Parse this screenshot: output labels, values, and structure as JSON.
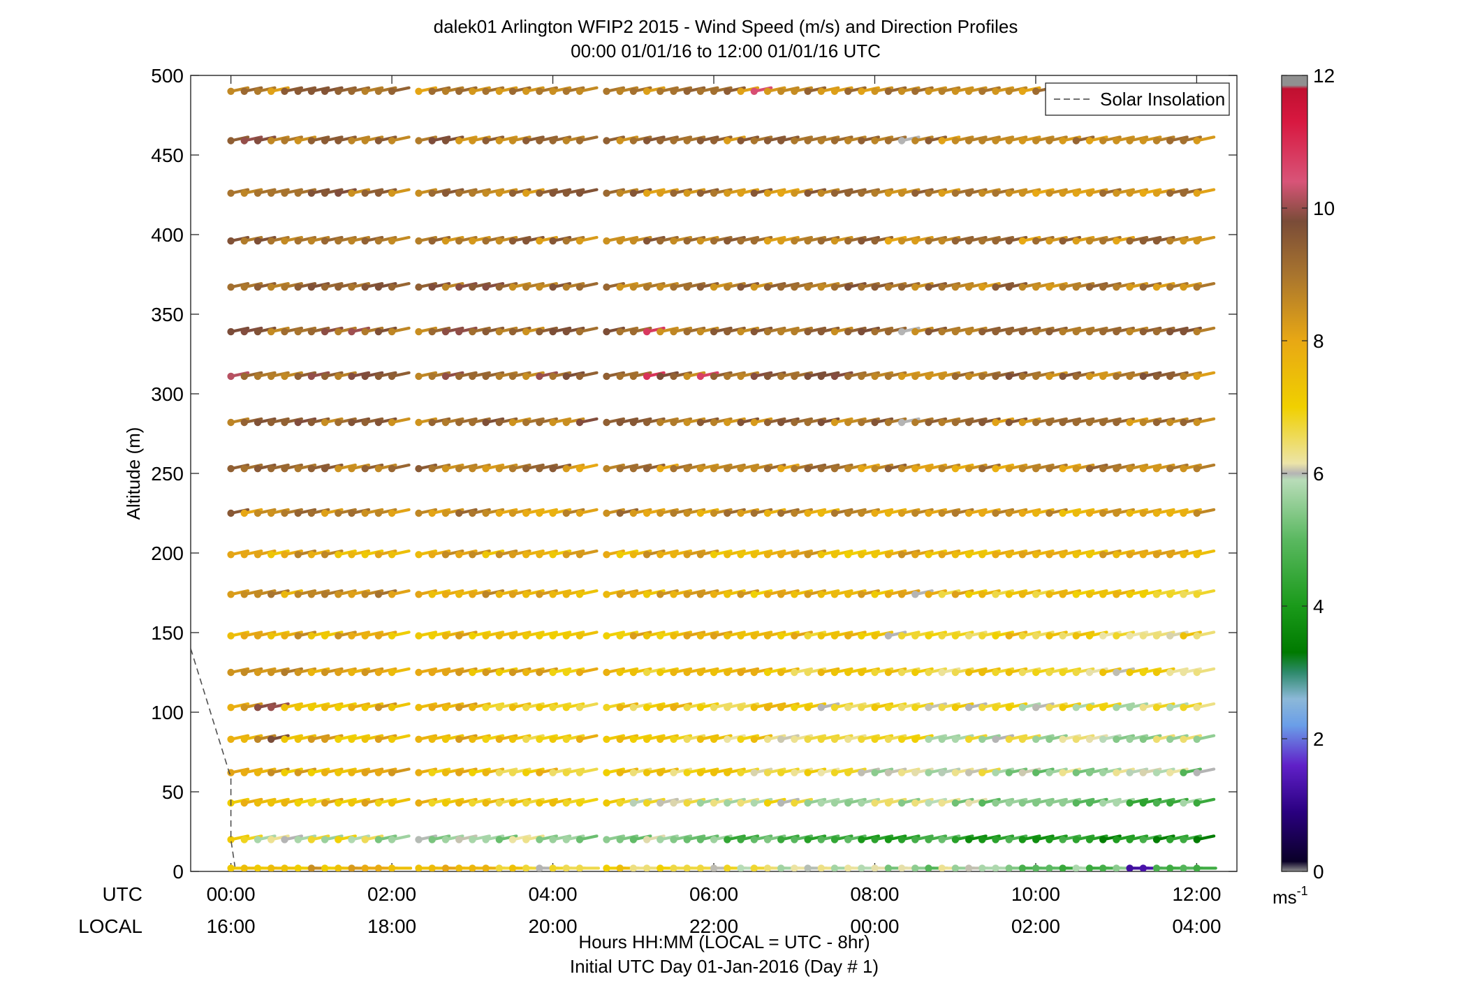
{
  "chart_data": {
    "type": "wind-barb-profile",
    "title": "dalek01 Arlington WFIP2 2015 - Wind Speed (m/s) and Direction Profiles",
    "subtitle": "00:00 01/01/16 to 12:00 01/01/16  UTC",
    "ylabel": "Altitude (m)",
    "xlabel": "Hours HH:MM  (LOCAL = UTC - 8hr)",
    "xlabel2": "Initial UTC Day 01-Jan-2016 (Day # 1)",
    "x_row_labels": {
      "utc": "UTC",
      "local": "LOCAL"
    },
    "x_ticks_utc": [
      "00:00",
      "02:00",
      "04:00",
      "06:00",
      "08:00",
      "10:00",
      "12:00"
    ],
    "x_ticks_local": [
      "16:00",
      "18:00",
      "20:00",
      "22:00",
      "00:00",
      "02:00",
      "04:00"
    ],
    "x_tick_hours": [
      0,
      2,
      4,
      6,
      8,
      10,
      12
    ],
    "xlim_hours": [
      -0.5,
      12.5
    ],
    "ylim": [
      0,
      500
    ],
    "y_ticks": [
      0,
      50,
      100,
      150,
      200,
      250,
      300,
      350,
      400,
      450,
      500
    ],
    "legend": {
      "entry": "Solar Insolation",
      "style": "dashed gray",
      "position": "top-right"
    },
    "colorbar": {
      "range": [
        0,
        12
      ],
      "ticks": [
        0,
        2,
        4,
        6,
        8,
        10,
        12
      ],
      "unit": "ms",
      "unit_exponent": "-1",
      "stops": [
        {
          "v": 0.0,
          "c": "#909090"
        },
        {
          "v": 0.15,
          "c": "#0a0028"
        },
        {
          "v": 0.9,
          "c": "#2a0080"
        },
        {
          "v": 1.6,
          "c": "#6020c8"
        },
        {
          "v": 2.2,
          "c": "#6a9ee8"
        },
        {
          "v": 2.6,
          "c": "#8cb8d8"
        },
        {
          "v": 3.0,
          "c": "#2e8a6c"
        },
        {
          "v": 3.3,
          "c": "#007a00"
        },
        {
          "v": 4.0,
          "c": "#1a9a1a"
        },
        {
          "v": 5.0,
          "c": "#5ab860"
        },
        {
          "v": 5.9,
          "c": "#b8dcb8"
        },
        {
          "v": 6.0,
          "c": "#b4b4b4"
        },
        {
          "v": 6.15,
          "c": "#ece4a8"
        },
        {
          "v": 7.0,
          "c": "#f0d000"
        },
        {
          "v": 8.0,
          "c": "#e8a814"
        },
        {
          "v": 9.0,
          "c": "#a8742e"
        },
        {
          "v": 9.8,
          "c": "#7a4c38"
        },
        {
          "v": 10.4,
          "c": "#d85478"
        },
        {
          "v": 11.3,
          "c": "#d81840"
        },
        {
          "v": 11.8,
          "c": "#c01030"
        },
        {
          "v": 11.85,
          "c": "#909090"
        },
        {
          "v": 12.0,
          "c": "#909090"
        }
      ]
    },
    "solar_insolation": {
      "hours": [
        -0.5,
        -0.02,
        0.0,
        0.0,
        0.05
      ],
      "altitude": [
        140,
        62,
        60,
        20,
        3
      ]
    },
    "heights": [
      2,
      20,
      43,
      62,
      83,
      103,
      125,
      148,
      174,
      199,
      225,
      253,
      282,
      311,
      339,
      367,
      396,
      426,
      459,
      490
    ],
    "time_hours_start": 0.0,
    "time_step_hours": 0.1667,
    "time_steps": 73,
    "gap_hours": [
      [
        2.05,
        2.33
      ],
      [
        4.35,
        4.55
      ]
    ],
    "direction_deg_lowest": 270,
    "direction_deg_other": 245,
    "speed_profile_by_height": [
      {
        "z": 2,
        "early": 8.0,
        "late": 4.8
      },
      {
        "z": 20,
        "early": 6.5,
        "late": 3.8
      },
      {
        "z": 43,
        "early": 7.8,
        "late": 4.9
      },
      {
        "z": 62,
        "early": 8.0,
        "late": 5.4
      },
      {
        "z": 83,
        "early": 8.0,
        "late": 5.8
      },
      {
        "z": 103,
        "early": 7.9,
        "late": 6.2
      },
      {
        "z": 125,
        "early": 8.2,
        "late": 6.5
      },
      {
        "z": 148,
        "early": 8.0,
        "late": 6.8
      },
      {
        "z": 174,
        "early": 8.5,
        "late": 7.0
      },
      {
        "z": 199,
        "early": 8.0,
        "late": 7.6
      },
      {
        "z": 225,
        "early": 8.8,
        "late": 8.0
      },
      {
        "z": 253,
        "early": 8.9,
        "late": 8.5
      },
      {
        "z": 282,
        "early": 9.2,
        "late": 8.8
      },
      {
        "z": 311,
        "early": 9.4,
        "late": 8.9
      },
      {
        "z": 339,
        "early": 9.3,
        "late": 8.9
      },
      {
        "z": 367,
        "early": 9.2,
        "late": 8.8
      },
      {
        "z": 396,
        "early": 9.0,
        "late": 8.7
      },
      {
        "z": 426,
        "early": 9.1,
        "late": 8.6
      },
      {
        "z": 459,
        "early": 9.2,
        "late": 8.6
      },
      {
        "z": 490,
        "early": 8.9,
        "late": 8.5
      }
    ],
    "speed_anomalies": [
      {
        "z": 339,
        "hour": 5.17,
        "speed": 10.8
      },
      {
        "z": 311,
        "hour": 5.17,
        "speed": 10.9
      },
      {
        "z": 311,
        "hour": 5.83,
        "speed": 10.7
      },
      {
        "z": 490,
        "hour": 6.5,
        "speed": 10.5
      },
      {
        "z": 2,
        "hour": 11.17,
        "speed": 1.2
      },
      {
        "z": 2,
        "hour": 11.33,
        "speed": 1.3
      },
      {
        "z": 103,
        "hour": 0.33,
        "speed": 9.9
      },
      {
        "z": 103,
        "hour": 0.5,
        "speed": 10.0
      },
      {
        "z": 83,
        "hour": 0.5,
        "speed": 9.8
      },
      {
        "z": 459,
        "hour": 8.33,
        "speed": 6.0
      },
      {
        "z": 339,
        "hour": 8.33,
        "speed": 6.0
      },
      {
        "z": 282,
        "hour": 8.33,
        "speed": 6.0
      },
      {
        "z": 148,
        "hour": 8.17,
        "speed": 6.0
      },
      {
        "z": 174,
        "hour": 8.5,
        "speed": 6.0
      },
      {
        "z": 103,
        "hour": 7.33,
        "speed": 6.0
      },
      {
        "z": 103,
        "hour": 9.17,
        "speed": 6.0
      },
      {
        "z": 83,
        "hour": 9.5,
        "speed": 6.0
      },
      {
        "z": 62,
        "hour": 12.0,
        "speed": 6.0
      },
      {
        "z": 2,
        "hour": 3.83,
        "speed": 6.0
      },
      {
        "z": 20,
        "hour": 0.67,
        "speed": 6.0
      }
    ]
  }
}
